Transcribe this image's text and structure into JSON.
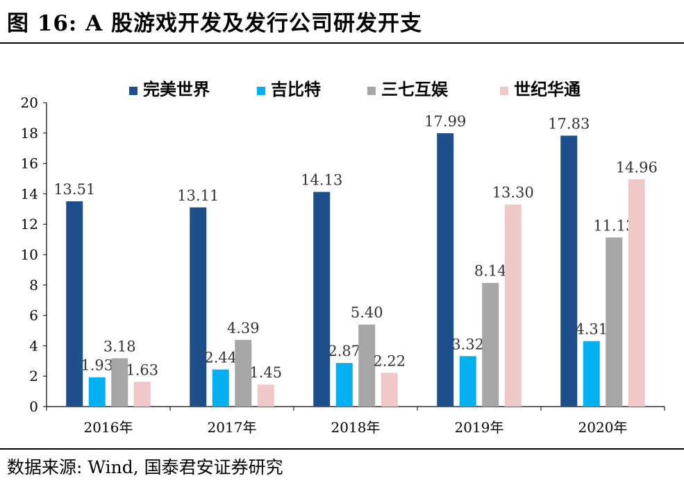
{
  "title": "图 16: A 股游戏开发及发行公司研发开支",
  "source": "数据来源: Wind, 国泰君安证券研究",
  "chart_data": {
    "type": "bar",
    "categories": [
      "2016年",
      "2017年",
      "2018年",
      "2019年",
      "2020年"
    ],
    "series": [
      {
        "name": "完美世界",
        "color": "#1f4e8c",
        "values": [
          13.51,
          13.11,
          14.13,
          17.99,
          17.83
        ]
      },
      {
        "name": "吉比特",
        "color": "#00b0f0",
        "values": [
          1.93,
          2.44,
          2.87,
          3.32,
          4.31
        ]
      },
      {
        "name": "三七互娱",
        "color": "#a6a6a6",
        "values": [
          3.18,
          4.39,
          5.4,
          8.14,
          11.13
        ]
      },
      {
        "name": "世纪华通",
        "color": "#f0c8c8",
        "values": [
          1.63,
          1.45,
          2.22,
          13.3,
          14.96
        ]
      }
    ],
    "ylim": [
      0,
      20
    ],
    "yticks": [
      0,
      2,
      4,
      6,
      8,
      10,
      12,
      14,
      16,
      18,
      20
    ],
    "legend_position": "top",
    "grid": false
  }
}
